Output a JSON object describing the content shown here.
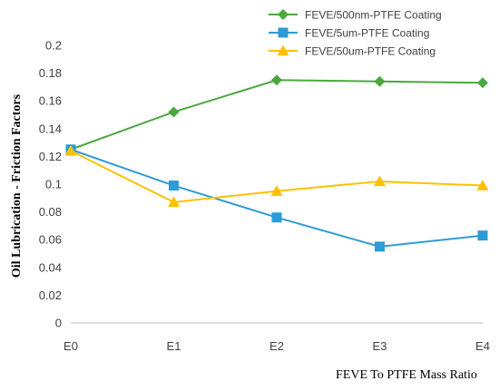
{
  "chart_data": {
    "type": "line",
    "categories": [
      "E0",
      "E1",
      "E2",
      "E3",
      "E4"
    ],
    "series": [
      {
        "name": "FEVE/500nm-PTFE Coating",
        "values": [
          0.125,
          0.152,
          0.175,
          0.174,
          0.173
        ],
        "color": "#4aa83f",
        "marker": "diamond"
      },
      {
        "name": "FEVE/5um-PTFE Coating",
        "values": [
          0.125,
          0.099,
          0.076,
          0.055,
          0.063
        ],
        "color": "#2e9bd6",
        "marker": "square"
      },
      {
        "name": "FEVE/50um-PTFE Coating",
        "values": [
          0.124,
          0.087,
          0.095,
          0.102,
          0.099
        ],
        "color": "#ffc000",
        "marker": "triangle"
      }
    ],
    "xlabel": "FEVE To PTFE Mass Ratio",
    "ylabel": "Oil Lubrication - Friction Factors",
    "ylim": [
      0,
      0.2
    ],
    "yticks": [
      "0",
      "0.02",
      "0.04",
      "0.06",
      "0.08",
      "0.1",
      "0.12",
      "0.14",
      "0.16",
      "0.18",
      "0.2"
    ],
    "grid": false,
    "legend": "top-right"
  }
}
